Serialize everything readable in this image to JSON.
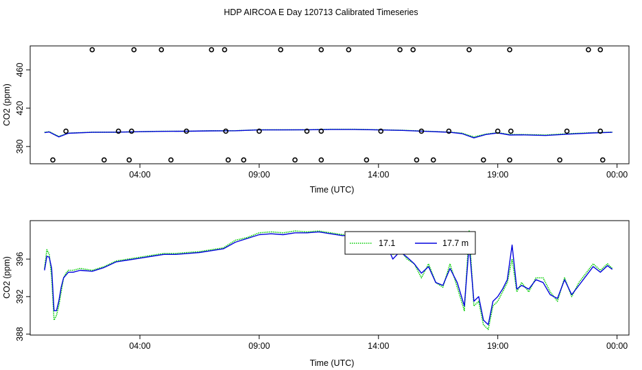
{
  "figure": {
    "title": "HDP AIRCOA E  Day 120713  Calibrated Timeseries"
  },
  "chart_data": [
    {
      "type": "line",
      "panel": "top",
      "xlabel": "Time (UTC)",
      "ylabel": "CO2 (ppm)",
      "x_unit": "hours UTC",
      "xlim": [
        -0.6,
        24.5
      ],
      "ylim": [
        362,
        485
      ],
      "x_ticks": [
        4,
        9,
        14,
        19,
        24
      ],
      "x_tick_labels": [
        "04:00",
        "09:00",
        "14:00",
        "19:00",
        "00:00"
      ],
      "y_ticks": [
        380,
        420,
        460
      ],
      "y_tick_labels": [
        "380",
        "420",
        "460"
      ],
      "grid": false,
      "series": [
        {
          "color": "#00cc00",
          "style": "dotted",
          "x": [
            0,
            0.2,
            0.4,
            0.6,
            1,
            2,
            3,
            4,
            5,
            6,
            7,
            8,
            9,
            10,
            11,
            12,
            13,
            14,
            15,
            16,
            17,
            17.5,
            18,
            18.5,
            19,
            19.5,
            20,
            21,
            22,
            23,
            23.8
          ],
          "y": [
            394.8,
            395.5,
            393,
            390.5,
            394,
            395,
            395,
            395.5,
            396,
            396,
            396.5,
            396.5,
            397.5,
            397.5,
            397.5,
            398,
            398,
            397.5,
            397,
            396,
            395,
            394,
            390,
            393,
            394.5,
            392.5,
            392.5,
            392,
            393.5,
            394.5,
            395
          ]
        },
        {
          "color": "#0000dd",
          "style": "solid",
          "x": [
            0,
            0.2,
            0.4,
            0.6,
            1,
            2,
            3,
            4,
            5,
            6,
            7,
            8,
            9,
            10,
            11,
            12,
            13,
            14,
            15,
            16,
            17,
            17.5,
            18,
            18.5,
            19,
            19.5,
            20,
            21,
            22,
            23,
            23.8
          ],
          "y": [
            394.5,
            395.2,
            392.5,
            390,
            393.8,
            394.8,
            395,
            395.5,
            395.8,
            396,
            396.3,
            396.5,
            397.3,
            397.3,
            397.5,
            397.8,
            397.8,
            397.3,
            396.8,
            395.8,
            394.8,
            393.5,
            389,
            392.5,
            394.2,
            392,
            392.2,
            391.5,
            393,
            394.2,
            394.8
          ]
        }
      ],
      "points": [
        {
          "x": 2.0,
          "y": 481
        },
        {
          "x": 3.75,
          "y": 481
        },
        {
          "x": 4.9,
          "y": 481
        },
        {
          "x": 7.0,
          "y": 481
        },
        {
          "x": 7.55,
          "y": 481
        },
        {
          "x": 9.9,
          "y": 481
        },
        {
          "x": 11.6,
          "y": 481
        },
        {
          "x": 12.75,
          "y": 481
        },
        {
          "x": 14.9,
          "y": 481
        },
        {
          "x": 15.45,
          "y": 481
        },
        {
          "x": 17.8,
          "y": 481
        },
        {
          "x": 19.5,
          "y": 481
        },
        {
          "x": 22.8,
          "y": 481
        },
        {
          "x": 23.3,
          "y": 481
        },
        {
          "x": 0.9,
          "y": 396
        },
        {
          "x": 3.1,
          "y": 396
        },
        {
          "x": 3.65,
          "y": 396
        },
        {
          "x": 5.95,
          "y": 396
        },
        {
          "x": 7.6,
          "y": 396
        },
        {
          "x": 9.0,
          "y": 396
        },
        {
          "x": 11.0,
          "y": 396
        },
        {
          "x": 11.6,
          "y": 396
        },
        {
          "x": 14.1,
          "y": 396
        },
        {
          "x": 15.8,
          "y": 396
        },
        {
          "x": 16.95,
          "y": 396
        },
        {
          "x": 19.0,
          "y": 396
        },
        {
          "x": 19.55,
          "y": 396
        },
        {
          "x": 21.9,
          "y": 396
        },
        {
          "x": 23.3,
          "y": 396
        },
        {
          "x": 0.35,
          "y": 366
        },
        {
          "x": 2.5,
          "y": 366
        },
        {
          "x": 3.55,
          "y": 366
        },
        {
          "x": 5.3,
          "y": 366
        },
        {
          "x": 7.7,
          "y": 366
        },
        {
          "x": 8.35,
          "y": 366
        },
        {
          "x": 10.5,
          "y": 366
        },
        {
          "x": 11.6,
          "y": 366
        },
        {
          "x": 13.5,
          "y": 366
        },
        {
          "x": 15.6,
          "y": 366
        },
        {
          "x": 16.3,
          "y": 366
        },
        {
          "x": 18.4,
          "y": 366
        },
        {
          "x": 19.5,
          "y": 366
        },
        {
          "x": 21.6,
          "y": 366
        },
        {
          "x": 23.4,
          "y": 366
        }
      ]
    },
    {
      "type": "line",
      "panel": "bottom",
      "xlabel": "Time (UTC)",
      "ylabel": "CO2 (ppm)",
      "x_unit": "hours UTC",
      "xlim": [
        -0.6,
        24.5
      ],
      "ylim": [
        387.9,
        400.1
      ],
      "x_ticks": [
        4,
        9,
        14,
        19,
        24
      ],
      "x_tick_labels": [
        "04:00",
        "09:00",
        "14:00",
        "19:00",
        "00:00"
      ],
      "y_ticks": [
        388,
        392,
        396
      ],
      "y_tick_labels": [
        "388",
        "392",
        "396"
      ],
      "grid": false,
      "legend": {
        "position": "top-right",
        "entries": [
          {
            "label": "17.1",
            "color": "#00cc00",
            "style": "dotted"
          },
          {
            "label": "17.7 m",
            "color": "#0000dd",
            "style": "solid"
          }
        ]
      },
      "series": [
        {
          "color": "#00cc00",
          "style": "dotted",
          "x": [
            0,
            0.1,
            0.2,
            0.3,
            0.4,
            0.5,
            0.6,
            0.7,
            0.8,
            0.9,
            1.0,
            1.2,
            1.5,
            2.0,
            2.5,
            3.0,
            3.5,
            4.0,
            4.5,
            5.0,
            5.5,
            6.0,
            6.5,
            7.0,
            7.5,
            8.0,
            8.5,
            9.0,
            9.5,
            10.0,
            10.5,
            11.0,
            11.5,
            12.0,
            12.5,
            13.0,
            13.5,
            14.0,
            14.3,
            14.6,
            14.9,
            15.2,
            15.5,
            15.8,
            16.1,
            16.4,
            16.7,
            17.0,
            17.3,
            17.6,
            17.8,
            18.0,
            18.2,
            18.4,
            18.6,
            18.8,
            19.0,
            19.2,
            19.4,
            19.6,
            19.8,
            20.0,
            20.3,
            20.6,
            20.9,
            21.2,
            21.5,
            21.8,
            22.1,
            22.4,
            22.7,
            23.0,
            23.3,
            23.6,
            23.8
          ],
          "y": [
            395,
            397,
            396.5,
            394,
            389.5,
            390,
            391,
            392.5,
            394,
            394.5,
            394.8,
            394.8,
            395,
            394.8,
            395.2,
            395.8,
            396,
            396.2,
            396.4,
            396.6,
            396.6,
            396.7,
            396.8,
            397,
            397.2,
            398,
            398.3,
            398.8,
            398.9,
            398.8,
            399,
            398.9,
            399,
            398.8,
            398.6,
            398.7,
            398.5,
            398.3,
            398.0,
            396.5,
            397,
            396,
            395.5,
            394,
            395.5,
            393.5,
            393,
            395.5,
            393,
            390.5,
            399,
            391,
            391.5,
            389,
            388.5,
            391,
            391.5,
            392.5,
            393.5,
            396,
            392.5,
            393.5,
            392.5,
            394,
            394,
            392.5,
            391.5,
            394,
            392,
            393.5,
            394.5,
            395.5,
            394.8,
            395.5,
            395
          ]
        },
        {
          "color": "#0000dd",
          "style": "solid",
          "x": [
            0,
            0.1,
            0.2,
            0.3,
            0.4,
            0.5,
            0.6,
            0.7,
            0.8,
            0.9,
            1.0,
            1.2,
            1.5,
            2.0,
            2.5,
            3.0,
            3.5,
            4.0,
            4.5,
            5.0,
            5.5,
            6.0,
            6.5,
            7.0,
            7.5,
            8.0,
            8.5,
            9.0,
            9.5,
            10.0,
            10.5,
            11.0,
            11.5,
            12.0,
            12.5,
            13.0,
            13.5,
            14.0,
            14.3,
            14.6,
            14.9,
            15.2,
            15.5,
            15.8,
            16.1,
            16.4,
            16.7,
            17.0,
            17.3,
            17.6,
            17.8,
            18.0,
            18.2,
            18.4,
            18.6,
            18.8,
            19.0,
            19.2,
            19.4,
            19.6,
            19.8,
            20.0,
            20.3,
            20.6,
            20.9,
            21.2,
            21.5,
            21.8,
            22.1,
            22.4,
            22.7,
            23.0,
            23.3,
            23.6,
            23.8
          ],
          "y": [
            394.8,
            396.3,
            396.2,
            395,
            390.5,
            390.5,
            391.5,
            393,
            394,
            394.3,
            394.6,
            394.6,
            394.8,
            394.7,
            395.1,
            395.7,
            395.9,
            396.1,
            396.3,
            396.5,
            396.5,
            396.6,
            396.7,
            396.9,
            397.1,
            397.8,
            398.2,
            398.6,
            398.7,
            398.6,
            398.8,
            398.8,
            398.9,
            398.7,
            398.5,
            398.6,
            398.4,
            398.2,
            397.8,
            396,
            396.8,
            396.2,
            395.5,
            394.5,
            395.2,
            393.5,
            393.2,
            395,
            393.5,
            391,
            397.5,
            391.5,
            392,
            389.5,
            389,
            391.5,
            392,
            392.8,
            393.8,
            397.5,
            392.8,
            393.2,
            392.8,
            393.8,
            393.5,
            392.2,
            391.8,
            393.8,
            392.2,
            393.2,
            394.2,
            395.2,
            394.6,
            395.3,
            394.9
          ]
        }
      ]
    }
  ]
}
